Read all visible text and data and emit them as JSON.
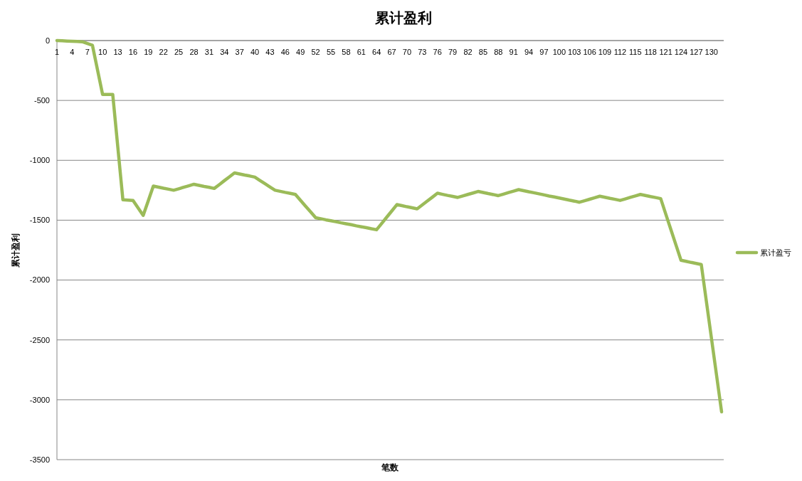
{
  "chart_data": {
    "type": "line",
    "title": "累计盈利",
    "xlabel": "笔数",
    "ylabel": "累计盈利",
    "categories": [
      "1",
      null,
      null,
      "4",
      null,
      null,
      "7",
      null,
      null,
      "10",
      null,
      null,
      "13",
      null,
      null,
      "16",
      null,
      null,
      "19",
      null,
      null,
      "22",
      null,
      null,
      "25",
      null,
      null,
      "28",
      null,
      null,
      "31",
      null,
      null,
      "34",
      null,
      null,
      "37",
      null,
      null,
      "40",
      null,
      null,
      "43",
      null,
      null,
      "46",
      null,
      null,
      "49",
      null,
      null,
      "52",
      null,
      null,
      "55",
      null,
      null,
      "58",
      null,
      null,
      "61",
      null,
      null,
      "64",
      null,
      null,
      "67",
      null,
      null,
      "70",
      null,
      null,
      "73",
      null,
      null,
      "76",
      null,
      null,
      "79",
      null,
      null,
      "82",
      null,
      null,
      "85",
      null,
      null,
      "88",
      null,
      null,
      "91",
      null,
      null,
      "94",
      null,
      null,
      "97",
      null,
      null,
      "100",
      null,
      null,
      "103",
      null,
      null,
      "106",
      null,
      null,
      "109",
      null,
      null,
      "112",
      null,
      null,
      "115",
      null,
      null,
      "118",
      null,
      null,
      "121",
      null,
      null,
      "124",
      null,
      null,
      "127",
      null,
      null,
      "130",
      null,
      null
    ],
    "series": [
      {
        "name": "累计盈亏",
        "color": "#9bbb59",
        "values": [
          0,
          -2,
          -4,
          -6,
          -8,
          -10,
          -25,
          -40,
          -245,
          -450,
          -450,
          -450,
          -890,
          -1330,
          -1332,
          -1335,
          -1398,
          -1460,
          -1338,
          -1215,
          -1224,
          -1233,
          -1241,
          -1250,
          -1238,
          -1225,
          -1213,
          -1200,
          -1209,
          -1218,
          -1226,
          -1235,
          -1203,
          -1170,
          -1138,
          -1105,
          -1114,
          -1123,
          -1131,
          -1140,
          -1168,
          -1195,
          -1223,
          -1250,
          -1259,
          -1268,
          -1276,
          -1285,
          -1334,
          -1383,
          -1431,
          -1480,
          -1488,
          -1497,
          -1505,
          -1513,
          -1522,
          -1530,
          -1538,
          -1547,
          -1555,
          -1563,
          -1572,
          -1580,
          -1528,
          -1475,
          -1423,
          -1370,
          -1379,
          -1388,
          -1396,
          -1405,
          -1373,
          -1340,
          -1308,
          -1275,
          -1284,
          -1293,
          -1301,
          -1310,
          -1298,
          -1285,
          -1273,
          -1260,
          -1269,
          -1278,
          -1286,
          -1295,
          -1283,
          -1270,
          -1258,
          -1245,
          -1254,
          -1263,
          -1271,
          -1280,
          -1289,
          -1298,
          -1306,
          -1315,
          -1324,
          -1333,
          -1341,
          -1350,
          -1338,
          -1325,
          -1313,
          -1300,
          -1309,
          -1318,
          -1326,
          -1335,
          -1323,
          -1310,
          -1298,
          -1285,
          -1294,
          -1303,
          -1311,
          -1320,
          -1449,
          -1578,
          -1706,
          -1835,
          -1844,
          -1853,
          -1861,
          -1870,
          -2178,
          -2485,
          -2793,
          -3100
        ]
      }
    ],
    "ylim": [
      -3500,
      0
    ],
    "yticks": [
      0,
      -500,
      -1000,
      -1500,
      -2000,
      -2500,
      -3000,
      -3500
    ],
    "grid": "y",
    "legend": "right"
  }
}
